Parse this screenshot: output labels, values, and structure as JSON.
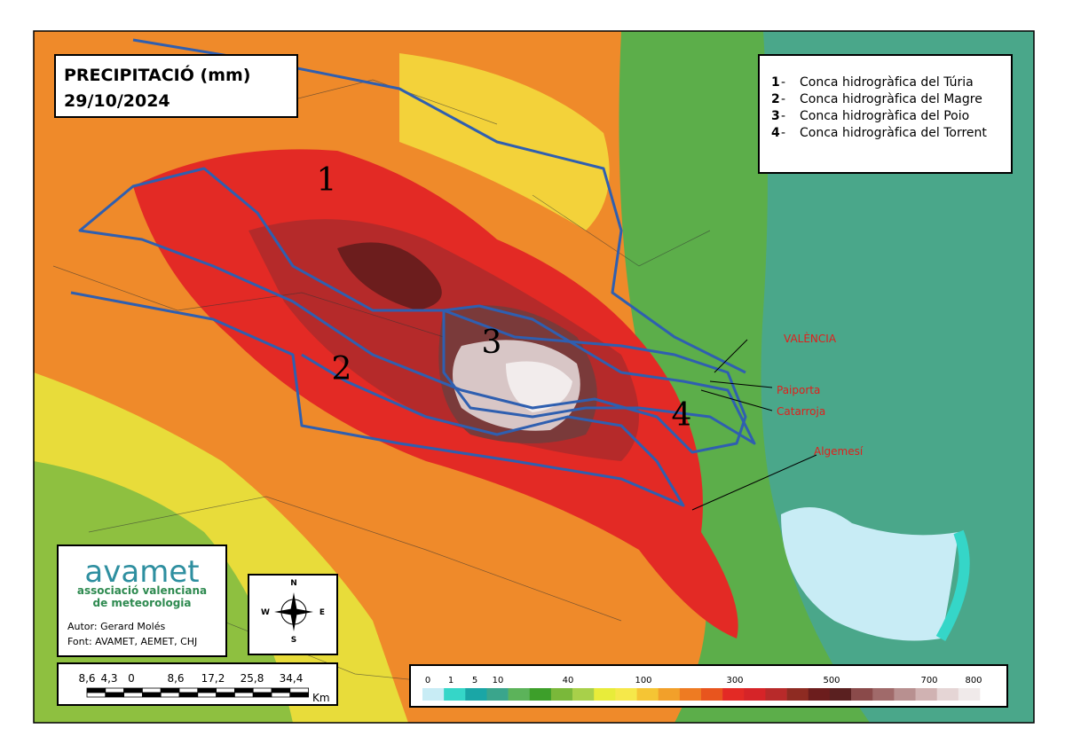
{
  "title": {
    "line1": "PRECIPITACIÓ (mm)",
    "line2": "29/10/2024"
  },
  "basins": [
    {
      "number": "1",
      "label": "Conca hidrogràfica del Túria"
    },
    {
      "number": "2",
      "label": "Conca hidrogràfica del Magre"
    },
    {
      "number": "3",
      "label": "Conca hidrogràfica del Poio"
    },
    {
      "number": "4",
      "label": "Conca hidrogràfica del Torrent"
    }
  ],
  "towns": [
    "VALÈNCIA",
    "Paiporta",
    "Catarroja",
    "Algemesí"
  ],
  "logo": {
    "name": "avamet",
    "line1": "associació valenciana",
    "line2": "de meteorologia"
  },
  "credits": [
    "Autor: Gerard Molés",
    "Font: AVAMET, AEMET, CHJ"
  ],
  "compass": [
    "N",
    "E",
    "S",
    "W"
  ],
  "scale_bar": {
    "labels": [
      "8,6",
      "4,3",
      "0",
      "8,6",
      "17,2",
      "25,8",
      "34,4"
    ],
    "unit": "Km"
  },
  "color_legend": {
    "labels": [
      "0",
      "1",
      "5",
      "10",
      "40",
      "100",
      "300",
      "500",
      "700",
      "800"
    ]
  }
}
